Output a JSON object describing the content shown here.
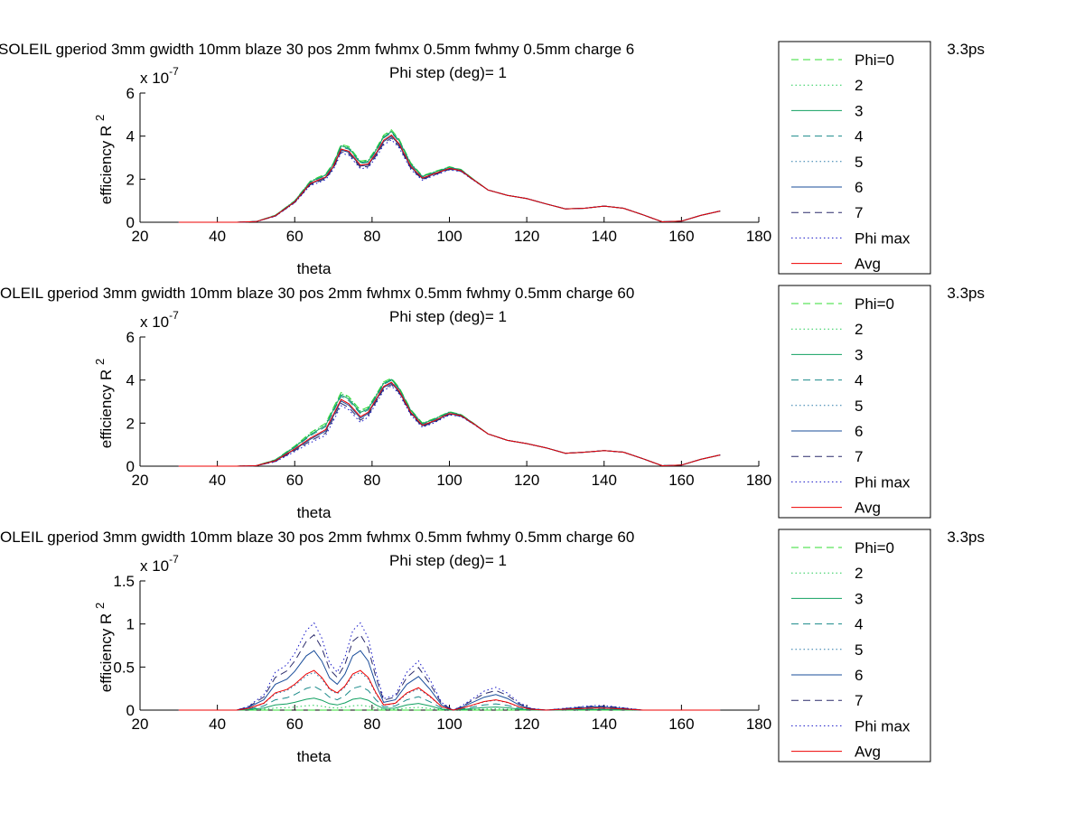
{
  "figure": {
    "background": "#ffffff"
  },
  "series_styles": [
    {
      "name": "Phi=0",
      "color": "#33dd33",
      "dash": "8,5"
    },
    {
      "name": "2",
      "color": "#22cc55",
      "dash": "1.5,3"
    },
    {
      "name": "3",
      "color": "#11a060",
      "dash": ""
    },
    {
      "name": "4",
      "color": "#1a8a8a",
      "dash": "8,5"
    },
    {
      "name": "5",
      "color": "#2a7aaa",
      "dash": "1.5,3"
    },
    {
      "name": "6",
      "color": "#1a4d9a",
      "dash": ""
    },
    {
      "name": "7",
      "color": "#2a2a6a",
      "dash": "8,5"
    },
    {
      "name": "Phi max",
      "color": "#1515c8",
      "dash": "1.5,3"
    },
    {
      "name": "Avg",
      "color": "#ee0000",
      "dash": ""
    }
  ],
  "chart_data": [
    {
      "type": "line",
      "title": "SOLEIL gperiod 3mm gwidth 10mm blaze 30 pos 2mm fwhmx 0.5mm fwhmy 0.5mm charge 6",
      "title_right": "3.3ps",
      "subtitle": "Phi step (deg)= 1",
      "xlabel": "theta",
      "ylabel_base": "efficiency R",
      "ylabel_sup": "2",
      "exponent_base": "x 10",
      "exponent_sup": "-7",
      "xlim": [
        20,
        180
      ],
      "ylim": [
        0,
        6
      ],
      "xticks": [
        "20",
        "40",
        "60",
        "80",
        "100",
        "120",
        "140",
        "160",
        "180"
      ],
      "yticks": [
        "0",
        "2",
        "4",
        "6"
      ],
      "grid": false,
      "legend_position": "right",
      "legend": [
        "Phi=0",
        "2",
        "3",
        "4",
        "5",
        "6",
        "7",
        "Phi max",
        "Avg"
      ],
      "x": [
        30,
        40,
        45,
        50,
        55,
        60,
        64,
        66,
        68,
        70,
        72,
        74,
        77,
        79,
        81,
        83,
        85,
        87,
        90,
        93,
        96,
        100,
        103,
        106,
        110,
        115,
        120,
        125,
        130,
        135,
        140,
        145,
        150,
        155,
        160,
        165,
        170
      ],
      "avg": [
        0,
        0,
        0,
        0.03,
        0.3,
        0.95,
        1.8,
        1.95,
        2.1,
        2.6,
        3.4,
        3.3,
        2.65,
        2.7,
        3.2,
        3.8,
        4.05,
        3.65,
        2.6,
        2.05,
        2.25,
        2.5,
        2.4,
        2.0,
        1.5,
        1.25,
        1.1,
        0.85,
        0.62,
        0.65,
        0.75,
        0.65,
        0.35,
        0.02,
        0.05,
        0.32,
        0.52
      ],
      "tail_from_x": 110,
      "spread": [
        0,
        0,
        0,
        0,
        0.05,
        0.1,
        0.2,
        0.25,
        0.25,
        0.3,
        0.4,
        0.4,
        0.35,
        0.35,
        0.4,
        0.45,
        0.45,
        0.4,
        0.3,
        0.2,
        0.18,
        0.15,
        0.1,
        0.05,
        0,
        0,
        0,
        0,
        0,
        0,
        0,
        0,
        0,
        0,
        0,
        0,
        0
      ]
    },
    {
      "type": "line",
      "title": "OLEIL gperiod 3mm gwidth 10mm blaze 30 pos 2mm fwhmx 0.5mm fwhmy 0.5mm charge 60",
      "title_right": "3.3ps",
      "subtitle": "Phi step (deg)= 1",
      "xlabel": "theta",
      "ylabel_base": "efficiency R",
      "ylabel_sup": "2",
      "exponent_base": "x 10",
      "exponent_sup": "-7",
      "xlim": [
        20,
        180
      ],
      "ylim": [
        0,
        6
      ],
      "xticks": [
        "20",
        "40",
        "60",
        "80",
        "100",
        "120",
        "140",
        "160",
        "180"
      ],
      "yticks": [
        "0",
        "2",
        "4",
        "6"
      ],
      "grid": false,
      "legend_position": "right",
      "legend": [
        "Phi=0",
        "2",
        "3",
        "4",
        "5",
        "6",
        "7",
        "Phi max",
        "Avg"
      ],
      "x": [
        30,
        40,
        45,
        50,
        55,
        60,
        64,
        66,
        68,
        70,
        72,
        74,
        77,
        79,
        81,
        83,
        85,
        87,
        90,
        93,
        96,
        100,
        103,
        106,
        110,
        115,
        120,
        125,
        130,
        135,
        140,
        145,
        150,
        155,
        160,
        165,
        170
      ],
      "avg": [
        0,
        0,
        0,
        0.02,
        0.25,
        0.8,
        1.3,
        1.5,
        1.7,
        2.4,
        3.1,
        2.9,
        2.3,
        2.5,
        3.1,
        3.7,
        3.9,
        3.5,
        2.5,
        1.9,
        2.1,
        2.45,
        2.35,
        2.0,
        1.5,
        1.2,
        1.05,
        0.85,
        0.6,
        0.65,
        0.72,
        0.65,
        0.35,
        0.02,
        0.05,
        0.32,
        0.52
      ],
      "tail_from_x": 110,
      "spread": [
        0,
        0,
        0,
        0,
        0.1,
        0.25,
        0.45,
        0.5,
        0.55,
        0.6,
        0.6,
        0.6,
        0.55,
        0.45,
        0.4,
        0.4,
        0.35,
        0.3,
        0.25,
        0.2,
        0.2,
        0.15,
        0.1,
        0.05,
        0,
        0,
        0,
        0,
        0,
        0,
        0,
        0,
        0,
        0,
        0,
        0,
        0
      ]
    },
    {
      "type": "line",
      "title": "OLEIL gperiod 3mm gwidth 10mm blaze 30 pos 2mm fwhmx 0.5mm fwhmy 0.5mm charge 60",
      "title_right": "3.3ps",
      "subtitle": "Phi step (deg)= 1",
      "xlabel": "theta",
      "ylabel_base": "efficiency R",
      "ylabel_sup": "2",
      "exponent_base": "x 10",
      "exponent_sup": "-7",
      "xlim": [
        20,
        180
      ],
      "ylim": [
        0,
        1.5
      ],
      "xticks": [
        "20",
        "40",
        "60",
        "80",
        "100",
        "120",
        "140",
        "160",
        "180"
      ],
      "yticks": [
        "0",
        "0.5",
        "1",
        "1.5"
      ],
      "grid": false,
      "legend_position": "right",
      "legend": [
        "Phi=0",
        "2",
        "3",
        "4",
        "5",
        "6",
        "7",
        "Phi max",
        "Avg"
      ],
      "x": [
        30,
        40,
        45,
        48,
        52,
        55,
        58,
        60,
        63,
        65,
        67,
        69,
        71,
        73,
        75,
        77,
        79,
        81,
        83,
        86,
        89,
        92,
        95,
        98,
        101,
        103,
        106,
        109,
        112,
        115,
        118,
        121,
        125,
        130,
        135,
        138,
        142,
        146,
        150,
        160,
        170
      ],
      "avg": [
        0,
        0,
        0,
        0.02,
        0.08,
        0.2,
        0.24,
        0.3,
        0.42,
        0.46,
        0.38,
        0.25,
        0.2,
        0.28,
        0.42,
        0.46,
        0.38,
        0.2,
        0.06,
        0.08,
        0.2,
        0.26,
        0.16,
        0.04,
        0,
        0.02,
        0.06,
        0.1,
        0.12,
        0.09,
        0.04,
        0.01,
        0,
        0.01,
        0.02,
        0.025,
        0.02,
        0.01,
        0,
        0,
        0
      ],
      "factors": [
        0,
        0.12,
        0.3,
        0.6,
        0.95,
        1.5,
        1.9,
        2.2,
        1.0
      ]
    }
  ]
}
